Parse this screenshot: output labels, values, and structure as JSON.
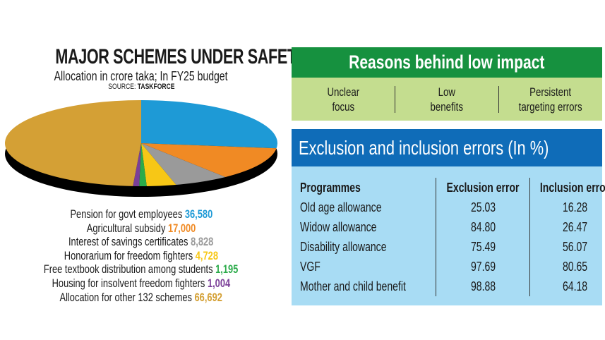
{
  "header": {
    "title": "MAJOR SCHEMES UNDER SAFETY NET",
    "subtitle": "Allocation in crore taka; In FY25 budget",
    "source_label": "SOURCE:",
    "source_name": "TASKFORCE"
  },
  "chart_data": {
    "type": "pie",
    "title": "MAJOR SCHEMES UNDER SAFETY NET",
    "subtitle": "Allocation in crore taka; In FY25 budget",
    "categories": [
      "Pension for govt employees",
      "Agricultural subsidy",
      "Interest of savings certificates",
      "Honorarium for freedom fighters",
      "Free textbook distribution among students",
      "Housing for insolvent freedom fighters",
      "Allocation for other 132 schemes"
    ],
    "values": [
      36580,
      17000,
      8828,
      4728,
      1195,
      1004,
      66692
    ],
    "value_labels": [
      "36,580",
      "17,000",
      "8,828",
      "4,728",
      "1,195",
      "1,004",
      "66,692"
    ],
    "colors": [
      "#1e9ad6",
      "#f08a24",
      "#9a9a9a",
      "#f7c716",
      "#2bab4a",
      "#7b3f98",
      "#d4a035"
    ],
    "style": "3d"
  },
  "reasons": {
    "title": "Reasons behind low impact",
    "items": [
      [
        "Unclear",
        "focus"
      ],
      [
        "Low",
        "benefits"
      ],
      [
        "Persistent",
        "targeting errors"
      ]
    ]
  },
  "errors": {
    "title": "Exclusion and inclusion errors (In %)",
    "headers": [
      "Programmes",
      "Exclusion error",
      "Inclusion error"
    ],
    "rows": [
      [
        "Old age allowance",
        "25.03",
        "16.28"
      ],
      [
        "Widow allowance",
        "84.80",
        "26.47"
      ],
      [
        "Disability allowance",
        "75.49",
        "56.07"
      ],
      [
        "VGF",
        "97.69",
        "80.65"
      ],
      [
        "Mother and child benefit",
        "98.88",
        "64.18"
      ]
    ]
  }
}
